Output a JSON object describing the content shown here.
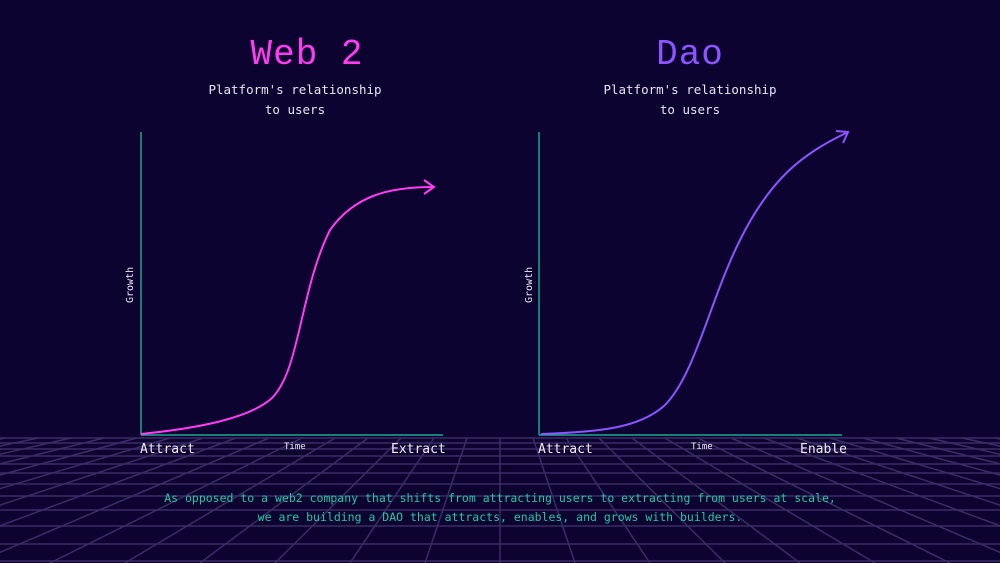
{
  "colors": {
    "background": "#0d0331",
    "web2": "#ff3df0",
    "dao": "#8b55ff",
    "axis": "#1fa88e",
    "caption": "#20c9a6",
    "grid": "#3b2d66"
  },
  "web2": {
    "title": "Web 2",
    "subtitle_line1": "Platform's relationship",
    "subtitle_line2": "to users",
    "y_label": "Growth",
    "x_label": "Time",
    "x_start": "Attract",
    "x_end": "Extract"
  },
  "dao": {
    "title": "Dao",
    "subtitle_line1": "Platform's relationship",
    "subtitle_line2": "to users",
    "y_label": "Growth",
    "x_label": "Time",
    "x_start": "Attract",
    "x_end": "Enable"
  },
  "caption": {
    "line1": "As opposed to a web2 company that shifts from attracting users to extracting from users at scale,",
    "line2": "we are building a DAO that attracts, enables, and grows with builders."
  }
}
